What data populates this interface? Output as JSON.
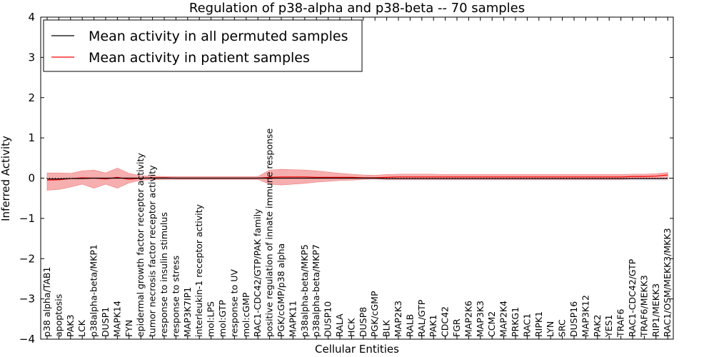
{
  "chart_data": {
    "type": "line",
    "title": "Regulation of p38-alpha and p38-beta -- 70 samples",
    "xlabel": "Cellular Entities",
    "ylabel": "Inferred Activity",
    "ylim": [
      -4,
      4
    ],
    "yticks": [
      -4,
      -3,
      -2,
      -1,
      0,
      1,
      2,
      3,
      4
    ],
    "grid": false,
    "legend_position": "top-left",
    "categories": [
      "p38 alpha/TAB1",
      "apoptosis",
      "PAK3",
      "LCK",
      "p38alpha-beta/MKP1",
      "DUSP1",
      "MAPK14",
      "FYN",
      "epidermal growth factor receptor activity",
      "tumor necrosis factor receptor activity",
      "response to insulin stimulus",
      "response to stress",
      "MAP3K7IP1",
      "interleukin-1 receptor activity",
      "mol:LPS",
      "mol:GTP",
      "response to UV",
      "mol:cGMP",
      "RAC1-CDC42/GTP/PAK family",
      "positive regulation of innate immune response",
      "PGK/cGMP/p38 alpha",
      "MAPK11",
      "p38alpha-beta/MKP5",
      "p38alpha-beta/MKP7",
      "DUSP10",
      "RALA",
      "HCK",
      "DUSP8",
      "PGK/cGMP",
      "BLK",
      "MAP2K3",
      "RALB",
      "RAL/GTP",
      "PAK1",
      "CDC42",
      "FGR",
      "MAP2K6",
      "MAP3K3",
      "CCM2",
      "MAP2K4",
      "PRKG1",
      "RAC1",
      "RIPK1",
      "LYN",
      "SRC",
      "DUSP16",
      "MAP3K12",
      "PAK2",
      "YES1",
      "TRAF6",
      "RAC1-CDC42/GTP",
      "TRAF6/MEKK3",
      "RIP1/MEKK3",
      "RAC1/OSM/MEKK3/MKK3"
    ],
    "series": [
      {
        "name": "Mean activity in all permuted samples",
        "color": "#000000",
        "values": [
          -0.02,
          -0.02,
          -0.01,
          -0.01,
          0.0,
          0.0,
          0.0,
          0.0,
          0.0,
          0.0,
          0.0,
          0.0,
          0.0,
          0.0,
          0.0,
          0.0,
          0.0,
          0.0,
          0.0,
          0.0,
          0.0,
          0.0,
          0.0,
          0.0,
          0.0,
          0.0,
          0.0,
          0.0,
          0.0,
          -0.01,
          -0.01,
          -0.01,
          -0.01,
          -0.01,
          -0.01,
          -0.01,
          -0.01,
          -0.01,
          -0.01,
          -0.01,
          -0.01,
          -0.01,
          -0.01,
          -0.01,
          -0.01,
          -0.01,
          -0.01,
          -0.01,
          -0.01,
          -0.01,
          -0.01,
          -0.01,
          -0.01,
          -0.01
        ],
        "lower": [
          -0.07,
          -0.06,
          -0.05,
          -0.05,
          -0.05,
          -0.05,
          -0.05,
          -0.05,
          -0.05,
          -0.05,
          -0.05,
          -0.05,
          -0.05,
          -0.05,
          -0.05,
          -0.05,
          -0.05,
          -0.05,
          -0.05,
          -0.05,
          -0.05,
          -0.05,
          -0.05,
          -0.05,
          -0.05,
          -0.05,
          -0.05,
          -0.05,
          -0.05,
          -0.06,
          -0.06,
          -0.06,
          -0.06,
          -0.06,
          -0.06,
          -0.06,
          -0.06,
          -0.06,
          -0.06,
          -0.06,
          -0.06,
          -0.06,
          -0.06,
          -0.06,
          -0.06,
          -0.06,
          -0.06,
          -0.06,
          -0.06,
          -0.06,
          -0.06,
          -0.06,
          -0.06,
          -0.07
        ],
        "upper": [
          0.05,
          0.05,
          0.05,
          0.05,
          0.05,
          0.05,
          0.05,
          0.05,
          0.05,
          0.05,
          0.05,
          0.05,
          0.05,
          0.05,
          0.05,
          0.05,
          0.05,
          0.05,
          0.05,
          0.05,
          0.05,
          0.05,
          0.05,
          0.05,
          0.05,
          0.05,
          0.05,
          0.05,
          0.04,
          0.04,
          0.04,
          0.04,
          0.04,
          0.04,
          0.04,
          0.04,
          0.04,
          0.04,
          0.04,
          0.04,
          0.04,
          0.04,
          0.04,
          0.04,
          0.04,
          0.04,
          0.04,
          0.04,
          0.04,
          0.04,
          0.04,
          0.04,
          0.04,
          0.04
        ]
      },
      {
        "name": "Mean activity in patient samples",
        "color": "#ff0000",
        "fill": "#f4a0a0",
        "values": [
          -0.05,
          -0.04,
          -0.01,
          0.01,
          0.0,
          -0.02,
          0.02,
          -0.03,
          0.0,
          0.01,
          0.01,
          0.0,
          0.0,
          0.0,
          0.0,
          0.0,
          0.0,
          0.0,
          0.0,
          0.02,
          0.03,
          0.03,
          0.03,
          0.02,
          0.02,
          0.02,
          0.02,
          0.01,
          0.01,
          0.02,
          0.03,
          0.03,
          0.03,
          0.03,
          0.03,
          0.03,
          0.03,
          0.03,
          0.03,
          0.03,
          0.03,
          0.03,
          0.03,
          0.03,
          0.03,
          0.03,
          0.03,
          0.03,
          0.03,
          0.03,
          0.04,
          0.04,
          0.05,
          0.08
        ],
        "lower": [
          -0.3,
          -0.28,
          -0.22,
          -0.15,
          -0.25,
          -0.15,
          -0.25,
          -0.12,
          -0.05,
          -0.04,
          -0.03,
          -0.03,
          -0.03,
          -0.03,
          -0.03,
          -0.03,
          -0.03,
          -0.03,
          -0.03,
          -0.15,
          -0.17,
          -0.15,
          -0.13,
          -0.1,
          -0.08,
          -0.06,
          -0.05,
          -0.03,
          -0.02,
          -0.03,
          -0.03,
          -0.03,
          -0.03,
          -0.03,
          -0.03,
          -0.03,
          -0.03,
          -0.03,
          -0.03,
          -0.03,
          -0.03,
          -0.03,
          -0.03,
          -0.03,
          -0.03,
          -0.03,
          -0.03,
          -0.03,
          -0.03,
          -0.03,
          -0.02,
          -0.02,
          -0.02,
          -0.02
        ],
        "upper": [
          0.13,
          0.13,
          0.12,
          0.18,
          0.2,
          0.13,
          0.25,
          0.12,
          0.06,
          0.05,
          0.04,
          0.04,
          0.04,
          0.04,
          0.04,
          0.04,
          0.04,
          0.04,
          0.04,
          0.2,
          0.22,
          0.21,
          0.2,
          0.18,
          0.15,
          0.12,
          0.1,
          0.08,
          0.07,
          0.09,
          0.1,
          0.1,
          0.1,
          0.1,
          0.09,
          0.09,
          0.09,
          0.09,
          0.09,
          0.09,
          0.09,
          0.09,
          0.09,
          0.09,
          0.09,
          0.09,
          0.09,
          0.09,
          0.09,
          0.09,
          0.1,
          0.1,
          0.11,
          0.14
        ]
      }
    ]
  }
}
